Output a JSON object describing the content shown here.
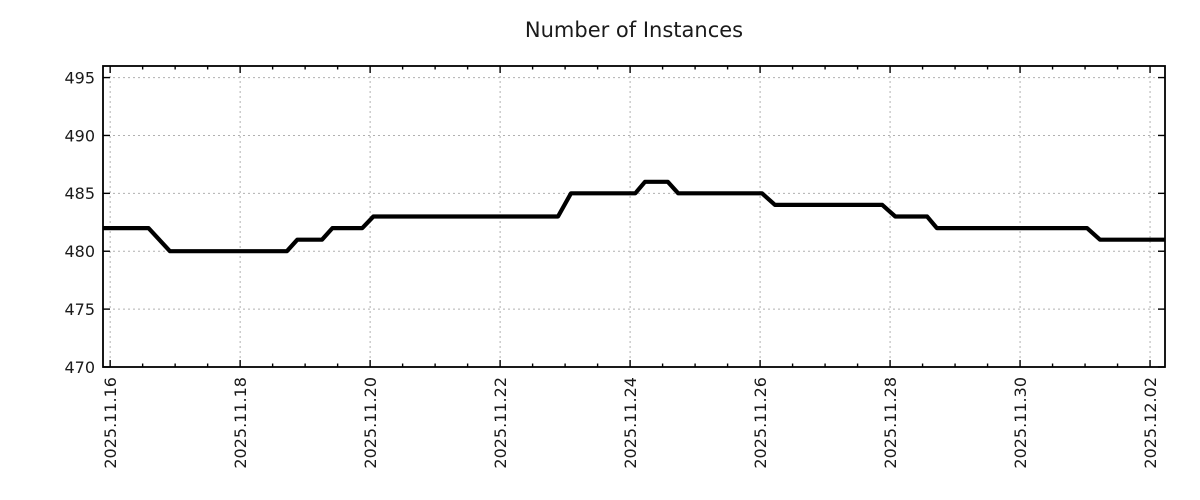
{
  "chart_data": {
    "type": "line",
    "title": "Number of Instances",
    "xlabel": "",
    "ylabel": "",
    "x_unit": "days offset from 2025.11.16",
    "xlim": [
      -0.11,
      16.23
    ],
    "ylim": [
      470,
      496
    ],
    "y_ticks": [
      470,
      475,
      480,
      485,
      490,
      495
    ],
    "x_major_ticks": [
      {
        "day": 0,
        "label": "2025.11.16"
      },
      {
        "day": 2,
        "label": "2025.11.18"
      },
      {
        "day": 4,
        "label": "2025.11.20"
      },
      {
        "day": 6,
        "label": "2025.11.22"
      },
      {
        "day": 8,
        "label": "2025.11.24"
      },
      {
        "day": 10,
        "label": "2025.11.26"
      },
      {
        "day": 12,
        "label": "2025.11.28"
      },
      {
        "day": 14,
        "label": "2025.11.30"
      },
      {
        "day": 16,
        "label": "2025.12.02"
      }
    ],
    "x_minor_step": 0.5,
    "grid": true,
    "legend": "none",
    "series": [
      {
        "name": "Number of Instances",
        "color": "#000000",
        "points": [
          [
            -0.11,
            482
          ],
          [
            0.59,
            482
          ],
          [
            0.92,
            480
          ],
          [
            2.72,
            480
          ],
          [
            2.88,
            481
          ],
          [
            3.26,
            481
          ],
          [
            3.42,
            482
          ],
          [
            3.88,
            482
          ],
          [
            4.05,
            483
          ],
          [
            6.89,
            483
          ],
          [
            7.09,
            485
          ],
          [
            8.08,
            485
          ],
          [
            8.23,
            486
          ],
          [
            8.58,
            486
          ],
          [
            8.74,
            485
          ],
          [
            10.03,
            485
          ],
          [
            10.23,
            484
          ],
          [
            11.88,
            484
          ],
          [
            12.08,
            483
          ],
          [
            12.57,
            483
          ],
          [
            12.72,
            482
          ],
          [
            15.03,
            482
          ],
          [
            15.23,
            481
          ],
          [
            16.23,
            481
          ]
        ]
      }
    ],
    "colors": {
      "line": "#000000",
      "grid": "#b0b0b0",
      "axis": "#000000",
      "text": "#1a1a1a",
      "background": "#ffffff"
    }
  }
}
